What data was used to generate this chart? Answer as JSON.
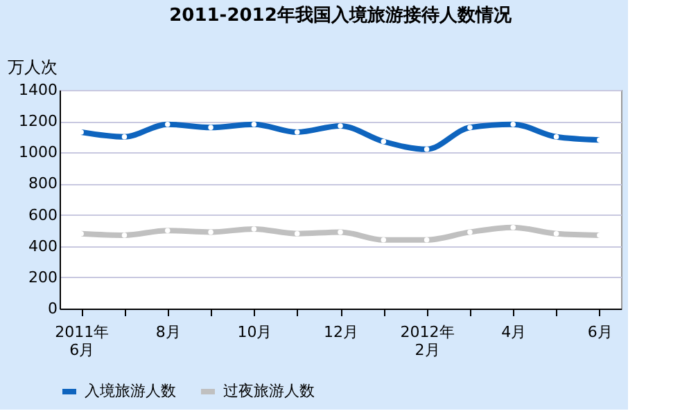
{
  "chart_data": {
    "type": "line",
    "title": "2011-2012年我国入境旅游接待人数情况",
    "ylabel": "万人次",
    "categories": [
      "2011年\n6月",
      null,
      "8月",
      null,
      "10月",
      null,
      "12月",
      null,
      "2012年\n2月",
      null,
      "4月",
      null,
      "6月"
    ],
    "series": [
      {
        "name": "入境旅游人数",
        "color": "#0e64be",
        "values": [
          1130,
          1100,
          1180,
          1160,
          1180,
          1130,
          1170,
          1070,
          1020,
          1160,
          1180,
          1100,
          1080
        ]
      },
      {
        "name": "过夜旅游人数",
        "color": "#c0c0c0",
        "values": [
          480,
          470,
          500,
          490,
          510,
          480,
          490,
          440,
          440,
          490,
          520,
          480,
          470
        ]
      }
    ],
    "ylim": [
      0,
      1400
    ],
    "yticks": [
      0,
      200,
      400,
      600,
      800,
      1000,
      1200,
      1400
    ],
    "grid": "y",
    "legend": "bottom",
    "marker": "circle",
    "line_style": "solid"
  }
}
